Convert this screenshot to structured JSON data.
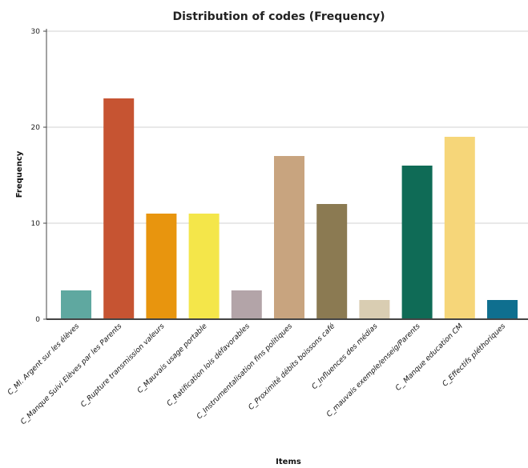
{
  "chart_data": {
    "type": "bar",
    "title": "Distribution of codes (Frequency)",
    "xlabel": "Items",
    "ylabel": "Frequency",
    "ylim": [
      0,
      30
    ],
    "yticks": [
      0,
      10,
      20,
      30
    ],
    "grid": true,
    "categories": [
      "C_Ml. Argent sur les élèves",
      "C_Manque Suivi Elèves par les Parents",
      "C_Rupture transmission valeurs",
      "C_Mauvais usage portable",
      "C_Ratification lois défavorables",
      "C_Instrumentalisation fins politiques",
      "C_Proximité débits boissons café",
      "C_Influences des médias",
      "C_mauvais exemple/enseig/Parents",
      "C_ Manque education CM",
      "C_Effectifs pléthoriques"
    ],
    "values": [
      3,
      23,
      11,
      11,
      3,
      17,
      12,
      2,
      16,
      19,
      2
    ],
    "colors": [
      "#5fa8a0",
      "#c65432",
      "#e8950e",
      "#f4e64a",
      "#b3a4a8",
      "#c8a47f",
      "#8b7a52",
      "#d9cdb2",
      "#0f6b56",
      "#f6d679",
      "#0f6f8f"
    ]
  }
}
